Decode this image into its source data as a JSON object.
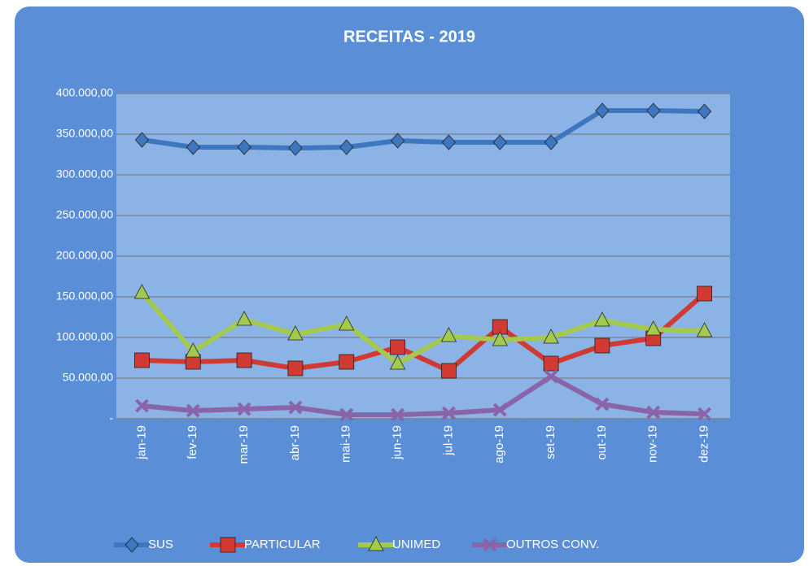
{
  "chart_data": {
    "type": "line",
    "title": "RECEITAS  - 2019",
    "categories": [
      "jan-19",
      "fev-19",
      "mar-19",
      "abr-19",
      "mai-19",
      "jun-19",
      "jul-19",
      "ago-19",
      "set-19",
      "out-19",
      "nov-19",
      "dez-19"
    ],
    "series": [
      {
        "name": "SUS",
        "color": "#3f76c0",
        "marker": "diamond",
        "values": [
          343000,
          334000,
          334000,
          333000,
          334000,
          342000,
          340000,
          340000,
          340000,
          379000,
          379000,
          378000
        ]
      },
      {
        "name": "PARTICULAR",
        "color": "#d03a32",
        "marker": "square",
        "values": [
          72000,
          70000,
          72000,
          62000,
          70000,
          88000,
          59000,
          113000,
          68000,
          90000,
          99000,
          154000
        ]
      },
      {
        "name": "UNIMED",
        "color": "#a3c94e",
        "marker": "triangle",
        "values": [
          155000,
          83000,
          122000,
          104000,
          116000,
          68000,
          102000,
          97000,
          100000,
          121000,
          110000,
          108000
        ]
      },
      {
        "name": "OUTROS CONV.",
        "color": "#8a64a8",
        "marker": "x",
        "values": [
          16000,
          10000,
          12000,
          14000,
          5000,
          5000,
          7000,
          11000,
          52000,
          18000,
          8000,
          6000
        ]
      }
    ],
    "ylim": [
      0,
      400000
    ],
    "yticks": [
      {
        "value": 0,
        "label": "-"
      },
      {
        "value": 50000,
        "label": "50.000,00"
      },
      {
        "value": 100000,
        "label": "100.000,00"
      },
      {
        "value": 150000,
        "label": "150.000,00"
      },
      {
        "value": 200000,
        "label": "200.000,00"
      },
      {
        "value": 250000,
        "label": "250.000,00"
      },
      {
        "value": 300000,
        "label": "300.000,00"
      },
      {
        "value": 350000,
        "label": "350.000,00"
      },
      {
        "value": 400000,
        "label": "400.000,00"
      }
    ],
    "grid": true,
    "legend": "bottom"
  }
}
